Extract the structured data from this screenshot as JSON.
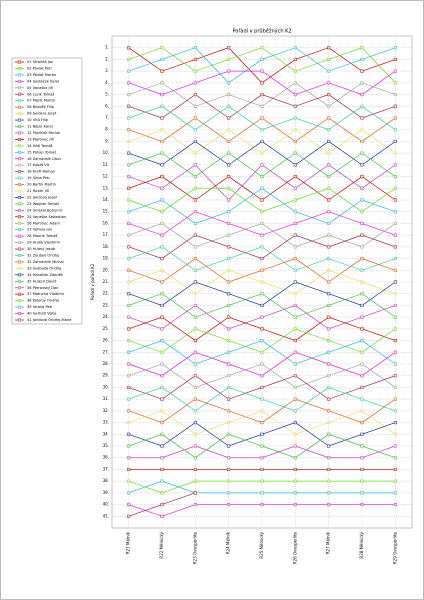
{
  "chart_data": {
    "type": "line",
    "title": "Pořadí v průběžných K2",
    "y_label": "Pořadí v pořadí K2",
    "categories": [
      "R21 Mělník",
      "R22 Mělnický",
      "R23 Ovesperlite",
      "R24 Mělník",
      "R25 Mělnický",
      "R26 Ovesperlite",
      "R27 Mělník",
      "R28 Mělnický",
      "R29 Ovesperlite"
    ],
    "ylim": [
      0,
      42
    ],
    "y_reversed": true,
    "grid": true,
    "legend": "left",
    "yticks": [
      {
        "value": 1,
        "label": "1."
      },
      {
        "value": 2,
        "label": "2."
      },
      {
        "value": 3,
        "label": "3."
      },
      {
        "value": 4,
        "label": "4."
      },
      {
        "value": 5,
        "label": "5."
      },
      {
        "value": 6,
        "label": "6."
      },
      {
        "value": 7,
        "label": "7."
      },
      {
        "value": 8,
        "label": "8."
      },
      {
        "value": 9,
        "label": "9."
      },
      {
        "value": 10,
        "label": "10."
      },
      {
        "value": 11,
        "label": "11."
      },
      {
        "value": 12,
        "label": "12."
      },
      {
        "value": 13,
        "label": "13."
      },
      {
        "value": 14,
        "label": "14."
      },
      {
        "value": 15,
        "label": "15."
      },
      {
        "value": 16,
        "label": "16."
      },
      {
        "value": 17,
        "label": "17."
      },
      {
        "value": 18,
        "label": "18."
      },
      {
        "value": 19,
        "label": "19."
      },
      {
        "value": 20,
        "label": "20."
      },
      {
        "value": 21,
        "label": "21."
      },
      {
        "value": 22,
        "label": "22."
      },
      {
        "value": 23,
        "label": "23."
      },
      {
        "value": 24,
        "label": "24."
      },
      {
        "value": 25,
        "label": "25."
      },
      {
        "value": 26,
        "label": "26."
      },
      {
        "value": 27,
        "label": "27."
      },
      {
        "value": 28,
        "label": "28."
      },
      {
        "value": 29,
        "label": "29."
      },
      {
        "value": 30,
        "label": "30."
      },
      {
        "value": 31,
        "label": "31."
      },
      {
        "value": 32,
        "label": "32."
      },
      {
        "value": 33,
        "label": "33."
      },
      {
        "value": 34,
        "label": "34."
      },
      {
        "value": 35,
        "label": "35."
      },
      {
        "value": 36,
        "label": "36."
      },
      {
        "value": 37,
        "label": "37."
      },
      {
        "value": 38,
        "label": "38."
      },
      {
        "value": 39,
        "label": "39."
      },
      {
        "value": 40,
        "label": "40."
      },
      {
        "value": 41,
        "label": "41."
      }
    ],
    "series": [
      {
        "name": "01 Straňák Jan",
        "color": "#c00000",
        "values": [
          1,
          3,
          2,
          1,
          4,
          2,
          1,
          3,
          2
        ]
      },
      {
        "name": "02 Pavlát Petr",
        "color": "#66dd22",
        "values": [
          2,
          1,
          3,
          2,
          1,
          3,
          2,
          1,
          4
        ]
      },
      {
        "name": "03 Pavlát Martin",
        "color": "#22b8e8",
        "values": [
          3,
          2,
          1,
          4,
          2,
          1,
          3,
          2,
          1
        ]
      },
      {
        "name": "04 Sedláček Karel",
        "color": "#e020e0",
        "values": [
          4,
          5,
          4,
          3,
          3,
          5,
          4,
          5,
          3
        ]
      },
      {
        "name": "05 Vacaška Jiří",
        "color": "#a0a0a0",
        "values": [
          5,
          4,
          6,
          5,
          6,
          4,
          6,
          4,
          5
        ]
      },
      {
        "name": "06 Lozík Tomáš",
        "color": "#a02050",
        "values": [
          6,
          7,
          5,
          7,
          5,
          6,
          5,
          7,
          6
        ]
      },
      {
        "name": "07 Mařík Martin",
        "color": "#30d0b0",
        "values": [
          7,
          6,
          8,
          6,
          8,
          7,
          8,
          6,
          8
        ]
      },
      {
        "name": "08 Bezděk Filip",
        "color": "#d06020",
        "values": [
          8,
          9,
          7,
          9,
          7,
          9,
          7,
          9,
          7
        ]
      },
      {
        "name": "09 Jandera Josef",
        "color": "#e8e060",
        "values": [
          9,
          8,
          10,
          8,
          10,
          8,
          10,
          8,
          10
        ]
      },
      {
        "name": "10 Vítů Filip",
        "color": "#1030a0",
        "values": [
          10,
          11,
          9,
          11,
          9,
          11,
          9,
          11,
          9
        ]
      },
      {
        "name": "11 Bajza Karel",
        "color": "#40c040",
        "values": [
          11,
          10,
          12,
          10,
          12,
          10,
          12,
          10,
          12
        ]
      },
      {
        "name": "12 Pavlíček Michal",
        "color": "#c040c0",
        "values": [
          12,
          13,
          11,
          14,
          11,
          13,
          11,
          13,
          11
        ]
      },
      {
        "name": "13 Martinec Jiří",
        "color": "#c00000",
        "values": [
          13,
          12,
          14,
          12,
          14,
          12,
          14,
          12,
          14
        ]
      },
      {
        "name": "14 Hátl Tomáš",
        "color": "#66dd22",
        "values": [
          14,
          15,
          13,
          13,
          15,
          14,
          13,
          15,
          13
        ]
      },
      {
        "name": "15 Pohan Tomáš",
        "color": "#22b8e8",
        "values": [
          15,
          14,
          16,
          15,
          13,
          15,
          16,
          14,
          15
        ]
      },
      {
        "name": "16 Zahradník Libor",
        "color": "#e020e0",
        "values": [
          16,
          17,
          15,
          16,
          17,
          16,
          15,
          16,
          17
        ]
      },
      {
        "name": "17 Kubát Vít",
        "color": "#a0a0a0",
        "values": [
          17,
          16,
          18,
          17,
          16,
          18,
          17,
          18,
          16
        ]
      },
      {
        "name": "18 Kraft Roman",
        "color": "#a02050",
        "values": [
          18,
          19,
          17,
          18,
          19,
          17,
          18,
          17,
          18
        ]
      },
      {
        "name": "19 Šíma Petr",
        "color": "#30d0b0",
        "values": [
          19,
          18,
          20,
          19,
          18,
          20,
          19,
          20,
          19
        ]
      },
      {
        "name": "20 Bartík Martin",
        "color": "#d06020",
        "values": [
          20,
          21,
          19,
          21,
          20,
          19,
          21,
          19,
          20
        ]
      },
      {
        "name": "21 Rusek Jiří",
        "color": "#e8e060",
        "values": [
          21,
          20,
          22,
          20,
          21,
          22,
          20,
          21,
          22
        ]
      },
      {
        "name": "22 Jandová Josef",
        "color": "#1030a0",
        "values": [
          22,
          23,
          21,
          22,
          23,
          21,
          22,
          23,
          21
        ]
      },
      {
        "name": "23 Wagner Tomáš",
        "color": "#40c040",
        "values": [
          23,
          22,
          24,
          23,
          22,
          24,
          23,
          22,
          24
        ]
      },
      {
        "name": "24 Smékal Bohumír",
        "color": "#c040c0",
        "values": [
          24,
          25,
          23,
          25,
          24,
          23,
          25,
          24,
          23
        ]
      },
      {
        "name": "25 Vacaška Sebastian",
        "color": "#c00000",
        "values": [
          25,
          24,
          26,
          24,
          25,
          26,
          24,
          25,
          26
        ]
      },
      {
        "name": "26 Martinec Adam",
        "color": "#66dd22",
        "values": [
          26,
          27,
          25,
          26,
          27,
          25,
          26,
          27,
          25
        ]
      },
      {
        "name": "27 Vetlara Jan",
        "color": "#22b8e8",
        "values": [
          27,
          26,
          28,
          27,
          26,
          28,
          27,
          26,
          28
        ]
      },
      {
        "name": "28 Mouřík Tomáš",
        "color": "#e020e0",
        "values": [
          28,
          29,
          27,
          28,
          29,
          27,
          28,
          29,
          27
        ]
      },
      {
        "name": "29 Hudík Vlastimil",
        "color": "#a0a0a0",
        "values": [
          29,
          28,
          30,
          29,
          28,
          30,
          29,
          28,
          30
        ]
      },
      {
        "name": "30 Hudný Jakub",
        "color": "#a02050",
        "values": [
          30,
          31,
          29,
          31,
          30,
          29,
          31,
          30,
          29
        ]
      },
      {
        "name": "31 Zoubek Ondřej",
        "color": "#30d0b0",
        "values": [
          31,
          30,
          32,
          30,
          31,
          32,
          30,
          31,
          32
        ]
      },
      {
        "name": "32 Zahradník Michal",
        "color": "#d06020",
        "values": [
          32,
          33,
          31,
          32,
          33,
          31,
          32,
          33,
          31
        ]
      },
      {
        "name": "33 Svoboda Ondřej",
        "color": "#e8e060",
        "values": [
          33,
          32,
          34,
          33,
          32,
          34,
          33,
          32,
          34
        ]
      },
      {
        "name": "34 Hanáček Zdeněk",
        "color": "#1030a0",
        "values": [
          34,
          35,
          33,
          35,
          34,
          33,
          35,
          34,
          33
        ]
      },
      {
        "name": "35 Hulecil David",
        "color": "#40c040",
        "values": [
          35,
          34,
          36,
          34,
          35,
          36,
          34,
          35,
          36
        ]
      },
      {
        "name": "36 Petrovský Dan",
        "color": "#c040c0",
        "values": [
          36,
          36,
          35,
          36,
          36,
          35,
          36,
          36,
          35
        ]
      },
      {
        "name": "37 Matucha Vladimír",
        "color": "#c00000",
        "values": [
          37,
          37,
          37,
          37,
          37,
          37,
          37,
          37,
          37
        ]
      },
      {
        "name": "38 Kolomý Ondřej",
        "color": "#66dd22",
        "values": [
          38,
          39,
          38,
          38,
          38,
          38,
          38,
          38,
          38
        ]
      },
      {
        "name": "39 Straka Petr",
        "color": "#22b8e8",
        "values": [
          39,
          38,
          39,
          39,
          39,
          39,
          39,
          39,
          39
        ]
      },
      {
        "name": "40 Gerhátl Vojta",
        "color": "#e020e0",
        "values": [
          40,
          41,
          40,
          40,
          40,
          40,
          40,
          40,
          40
        ]
      },
      {
        "name": "41 Jandová Ondřej-Marie",
        "color": "#a02050",
        "values": [
          41,
          40,
          39,
          null,
          null,
          null,
          null,
          null,
          null
        ]
      }
    ]
  }
}
